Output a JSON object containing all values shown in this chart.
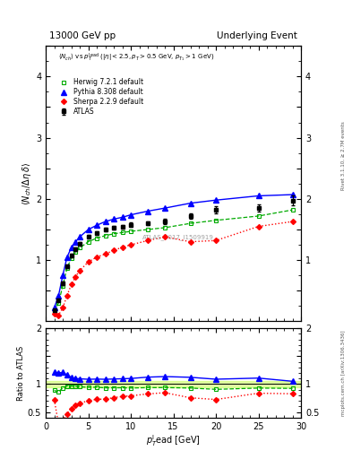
{
  "title_left": "13000 GeV pp",
  "title_right": "Underlying Event",
  "subtitle": "<N_{ch}> vs p_T^{lead} (|\\eta| < 2.5, p_T > 0.5 GeV, p_{T_1} > 1 GeV)",
  "watermark": "ATLAS_2017_I1509919",
  "right_label_top": "Rivet 3.1.10, ≥ 2.7M events",
  "right_label_bottom": "mcplots.cern.ch [arXiv:1306.3436]",
  "ylim_main": [
    0.0,
    4.5
  ],
  "ylim_ratio": [
    0.4,
    2.0
  ],
  "xlim": [
    0,
    30
  ],
  "yticks_main": [
    0.5,
    1.0,
    1.5,
    2.0,
    2.5,
    3.0,
    3.5,
    4.0,
    4.5
  ],
  "ytick_labels_main": [
    "",
    "1",
    "",
    "2",
    "",
    "3",
    "",
    "4",
    ""
  ],
  "yticks_ratio": [
    0.5,
    1.0,
    1.5,
    2.0
  ],
  "ytick_labels_ratio": [
    "0.5",
    "1",
    "",
    "2"
  ],
  "atlas_x": [
    1.0,
    1.5,
    2.0,
    2.5,
    3.0,
    3.5,
    4.0,
    5.0,
    6.0,
    7.0,
    8.0,
    9.0,
    10.0,
    12.0,
    14.0,
    17.0,
    20.0,
    25.0,
    29.0
  ],
  "atlas_y": [
    0.18,
    0.35,
    0.62,
    0.9,
    1.07,
    1.18,
    1.26,
    1.38,
    1.44,
    1.5,
    1.53,
    1.55,
    1.58,
    1.6,
    1.63,
    1.72,
    1.82,
    1.85,
    1.97
  ],
  "atlas_yerr": [
    0.02,
    0.02,
    0.03,
    0.03,
    0.03,
    0.03,
    0.03,
    0.03,
    0.03,
    0.03,
    0.03,
    0.03,
    0.03,
    0.03,
    0.04,
    0.05,
    0.06,
    0.06,
    0.08
  ],
  "herwig_x": [
    1.0,
    1.5,
    2.0,
    2.5,
    3.0,
    3.5,
    4.0,
    5.0,
    6.0,
    7.0,
    8.0,
    9.0,
    10.0,
    12.0,
    14.0,
    17.0,
    20.0,
    25.0,
    29.0
  ],
  "herwig_y": [
    0.16,
    0.3,
    0.58,
    0.87,
    1.03,
    1.13,
    1.2,
    1.3,
    1.36,
    1.4,
    1.43,
    1.45,
    1.47,
    1.5,
    1.53,
    1.6,
    1.65,
    1.72,
    1.82
  ],
  "pythia_x": [
    1.0,
    1.5,
    2.0,
    2.5,
    3.0,
    3.5,
    4.0,
    5.0,
    6.0,
    7.0,
    8.0,
    9.0,
    10.0,
    12.0,
    14.0,
    17.0,
    20.0,
    25.0,
    29.0
  ],
  "pythia_y": [
    0.22,
    0.42,
    0.75,
    1.05,
    1.2,
    1.3,
    1.38,
    1.5,
    1.57,
    1.63,
    1.67,
    1.7,
    1.74,
    1.8,
    1.85,
    1.93,
    1.98,
    2.05,
    2.07
  ],
  "sherpa_x": [
    1.0,
    1.5,
    2.0,
    2.5,
    3.0,
    3.5,
    4.0,
    5.0,
    6.0,
    7.0,
    8.0,
    9.0,
    10.0,
    12.0,
    14.0,
    17.0,
    20.0,
    25.0,
    29.0
  ],
  "sherpa_y": [
    0.13,
    0.1,
    0.22,
    0.42,
    0.6,
    0.73,
    0.83,
    0.97,
    1.05,
    1.1,
    1.16,
    1.21,
    1.25,
    1.32,
    1.38,
    1.3,
    1.32,
    1.55,
    1.63
  ],
  "atlas_color": "black",
  "herwig_color": "#00aa00",
  "pythia_color": "blue",
  "sherpa_color": "red",
  "ratio_band_color": "#ccff66",
  "ratio_band_alpha": 0.6
}
